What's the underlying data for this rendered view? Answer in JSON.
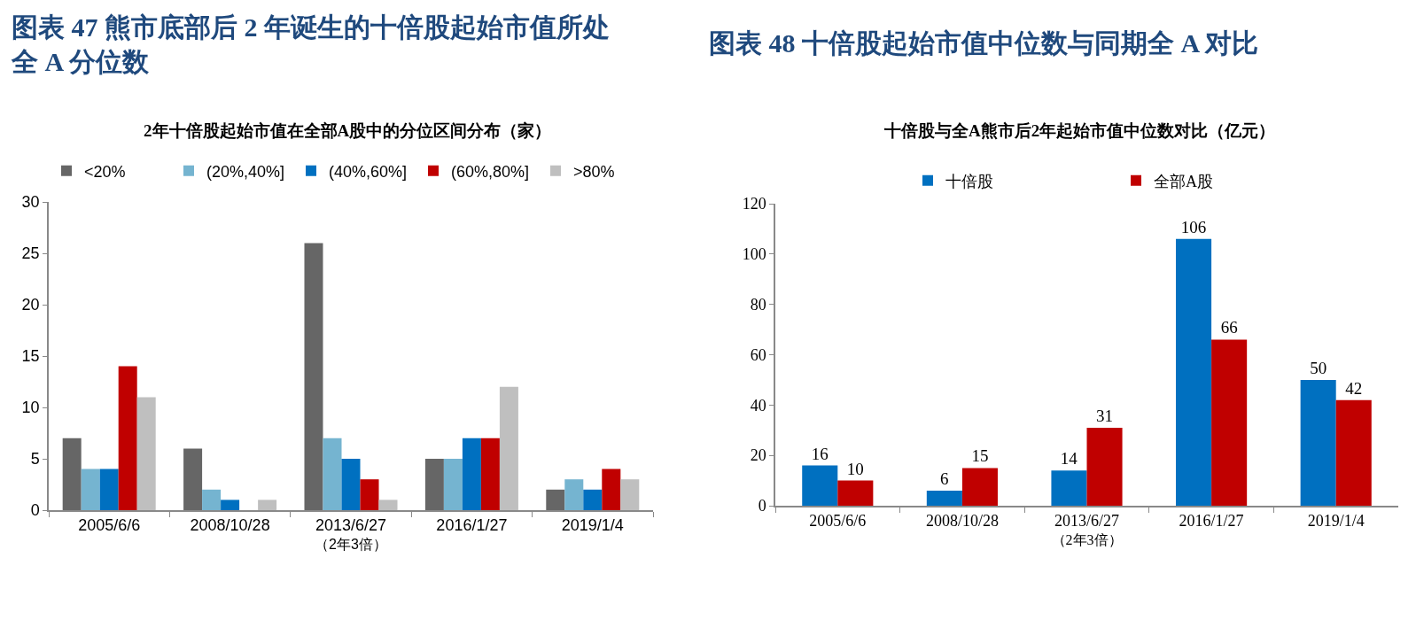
{
  "chart_data": [
    {
      "type": "bar",
      "title": "图表 47 熊市底部后 2 年诞生的十倍股起始市值所处全 A 分位数",
      "subtitle": "2年十倍股起始市值在全部A股中的分位区间分布（家）",
      "xlabel": "（2年3倍）",
      "categories": [
        "2005/6/6",
        "2008/10/28",
        "2013/6/27",
        "2016/1/27",
        "2019/1/4"
      ],
      "series": [
        {
          "name": "<20%",
          "color": "#666666",
          "values": [
            7,
            6,
            26,
            5,
            2
          ]
        },
        {
          "name": "(20%,40%]",
          "color": "#75b4d0",
          "values": [
            4,
            2,
            7,
            5,
            3
          ]
        },
        {
          "name": "(40%,60%]",
          "color": "#0070c0",
          "values": [
            4,
            1,
            5,
            7,
            2
          ]
        },
        {
          "name": "(60%,80%]",
          "color": "#c00000",
          "values": [
            14,
            0,
            3,
            7,
            4
          ]
        },
        {
          "name": ">80%",
          "color": "#bfbfbf",
          "values": [
            11,
            1,
            1,
            12,
            3
          ]
        }
      ],
      "ylim": [
        0,
        30
      ],
      "yticks": [
        0,
        5,
        10,
        15,
        20,
        25,
        30
      ],
      "legend": "top"
    },
    {
      "type": "bar",
      "title": "图表 48 十倍股起始市值中位数与同期全 A 对比",
      "subtitle": "十倍股与全A熊市后2年起始市值中位数对比（亿元）",
      "xlabel": "（2年3倍）",
      "categories": [
        "2005/6/6",
        "2008/10/28",
        "2013/6/27",
        "2016/1/27",
        "2019/1/4"
      ],
      "series": [
        {
          "name": "十倍股",
          "color": "#0070c0",
          "values": [
            16,
            6,
            14,
            106,
            50
          ]
        },
        {
          "name": "全部A股",
          "color": "#c00000",
          "values": [
            10,
            15,
            31,
            66,
            42
          ]
        }
      ],
      "ylim": [
        0,
        120
      ],
      "yticks": [
        0,
        20,
        40,
        60,
        80,
        100,
        120
      ],
      "legend": "top",
      "data_labels": true
    }
  ]
}
